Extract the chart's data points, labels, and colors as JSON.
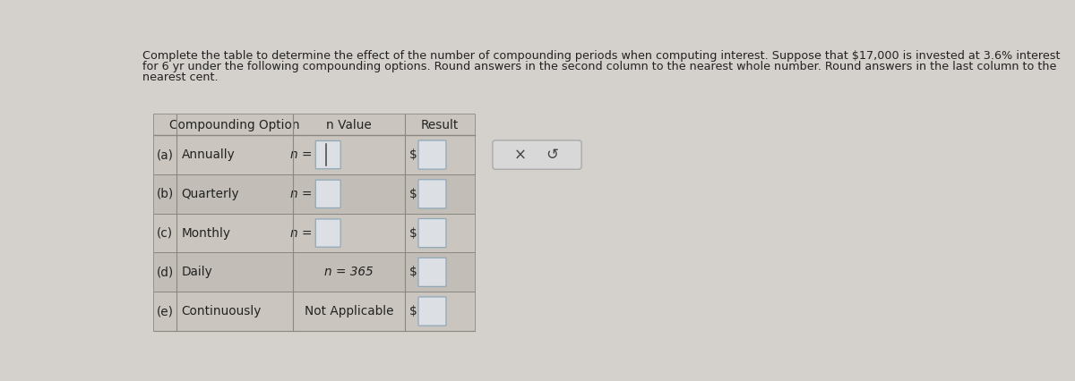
{
  "title_line1": "Complete the table to determine the effect of the number of compounding periods when computing interest. Suppose that $17,000 is invested at 3.6% interest",
  "title_line2": "for 6 yr under the following compounding options. Round answers in the second column to the nearest whole number. Round answers in the last column to the",
  "title_line3": "nearest cent.",
  "col_headers": [
    "Compounding Option",
    "n Value",
    "Result"
  ],
  "bg_color": "#d4d0cb",
  "table_outer_color": "#b0aca5",
  "row_colors": [
    "#cac6bf",
    "#c2beb7"
  ],
  "header_color": "#cac6bf",
  "input_box_fill": "#dcdfe3",
  "input_box_border": "#8fa8b8",
  "text_color": "#222222",
  "border_color": "#888880",
  "button_bg": "#d8d8d8",
  "button_border": "#aaaaaa",
  "title_fontsize": 9.2,
  "table_fontsize": 9.8,
  "rows": [
    {
      "letter": "(a)",
      "option": "Annually",
      "nval": "n =",
      "has_input": true,
      "has_cursor": true,
      "nfixed": false
    },
    {
      "letter": "(b)",
      "option": "Quarterly",
      "nval": "n =",
      "has_input": true,
      "has_cursor": false,
      "nfixed": false
    },
    {
      "letter": "(c)",
      "option": "Monthly",
      "nval": "n =",
      "has_input": true,
      "has_cursor": false,
      "nfixed": false
    },
    {
      "letter": "(d)",
      "option": "Daily",
      "nval": "n = 365",
      "has_input": false,
      "has_cursor": false,
      "nfixed": true
    },
    {
      "letter": "(e)",
      "option": "Continuously",
      "nval": "Not Applicable",
      "has_input": false,
      "has_cursor": false,
      "nfixed": true
    }
  ]
}
